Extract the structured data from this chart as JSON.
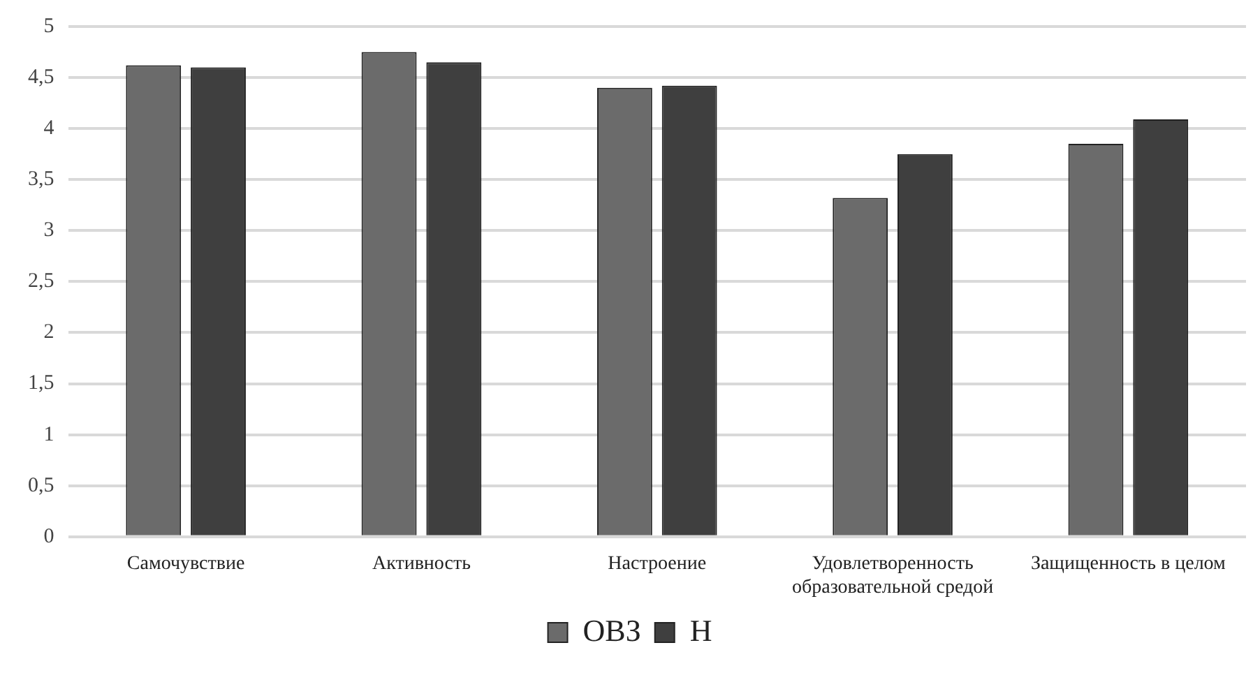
{
  "chart_data": {
    "type": "bar",
    "categories": [
      "Самочувствие",
      "Активность",
      "Настроение",
      "Удовлетворенность образовательной средой",
      "Защищенность в целом"
    ],
    "series": [
      {
        "name": "ОВЗ",
        "color": "#6b6b6b",
        "values": [
          4.62,
          4.75,
          4.4,
          3.32,
          3.85
        ]
      },
      {
        "name": "Н",
        "color": "#3f3f3f",
        "values": [
          4.6,
          4.65,
          4.42,
          3.75,
          4.09
        ]
      }
    ],
    "ylim": [
      0,
      5
    ],
    "yticks": [
      0,
      {
        "value": 0.5,
        "label": "0,5"
      },
      1,
      {
        "value": 1.5,
        "label": "1,5"
      },
      2,
      {
        "value": 2.5,
        "label": "2,5"
      },
      3,
      {
        "value": 3.5,
        "label": "3,5"
      },
      4,
      {
        "value": 4.5,
        "label": "4,5"
      },
      5
    ],
    "grid": "y",
    "legend": "bottom"
  }
}
